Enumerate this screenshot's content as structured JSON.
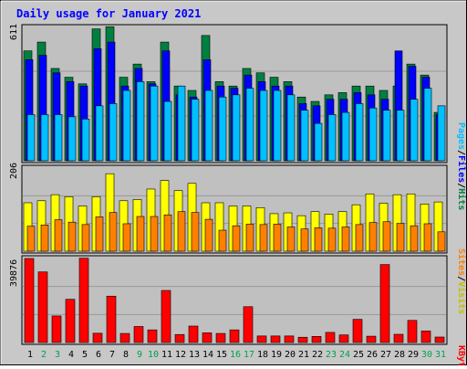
{
  "chart_data": [
    {
      "type": "bar",
      "panel": "pages-files-hits",
      "title": "Daily usage for January 2021",
      "scale_max_label": "611",
      "ylim": [
        0,
        611
      ],
      "categories": [
        "1",
        "2",
        "3",
        "4",
        "5",
        "6",
        "7",
        "8",
        "9",
        "10",
        "11",
        "12",
        "13",
        "14",
        "15",
        "16",
        "17",
        "18",
        "19",
        "20",
        "21",
        "22",
        "23",
        "24",
        "25",
        "26",
        "27",
        "28",
        "29",
        "30",
        "31"
      ],
      "weekend_days": [
        "2",
        "3",
        "9",
        "10",
        "16",
        "17",
        "23",
        "24",
        "30",
        "31"
      ],
      "series": [
        {
          "name": "Hits",
          "color": "#008040",
          "values": [
            500,
            540,
            420,
            380,
            350,
            600,
            610,
            380,
            440,
            360,
            540,
            340,
            320,
            570,
            360,
            340,
            420,
            400,
            380,
            360,
            290,
            270,
            300,
            310,
            340,
            340,
            320,
            340,
            440,
            390,
            220
          ]
        },
        {
          "name": "Files",
          "color": "#0000ff",
          "values": [
            460,
            480,
            400,
            360,
            340,
            510,
            540,
            340,
            420,
            350,
            500,
            300,
            290,
            460,
            340,
            330,
            390,
            360,
            340,
            340,
            260,
            250,
            280,
            280,
            310,
            300,
            280,
            500,
            430,
            380,
            210
          ]
        },
        {
          "name": "Pages",
          "color": "#00c0ff",
          "values": [
            210,
            210,
            210,
            200,
            190,
            250,
            260,
            320,
            360,
            340,
            270,
            340,
            280,
            320,
            290,
            300,
            330,
            320,
            320,
            300,
            230,
            170,
            210,
            220,
            260,
            240,
            230,
            230,
            280,
            330,
            250
          ]
        }
      ]
    },
    {
      "type": "bar",
      "panel": "visits-sites",
      "scale_max_label": "206",
      "ylim": [
        0,
        206
      ],
      "series": [
        {
          "name": "Visits",
          "color": "#ffff00",
          "values": [
            120,
            125,
            140,
            135,
            112,
            135,
            192,
            125,
            128,
            154,
            175,
            150,
            168,
            120,
            120,
            112,
            112,
            108,
            93,
            95,
            88,
            98,
            92,
            98,
            115,
            142,
            119,
            140,
            142,
            117,
            122
          ]
        },
        {
          "name": "Sites",
          "color": "#ff8000",
          "values": [
            62,
            65,
            78,
            72,
            66,
            85,
            96,
            68,
            86,
            86,
            90,
            98,
            96,
            79,
            52,
            63,
            67,
            66,
            67,
            60,
            55,
            58,
            57,
            60,
            66,
            71,
            73,
            69,
            63,
            68,
            48
          ]
        }
      ]
    },
    {
      "type": "bar",
      "panel": "kbytes",
      "scale_max_label": "39876",
      "ylim": [
        0,
        39876
      ],
      "series": [
        {
          "name": "KBytes",
          "color": "#ff0000",
          "values": [
            39876,
            33500,
            12600,
            20500,
            40000,
            4400,
            22000,
            4300,
            7600,
            6000,
            24700,
            3800,
            7800,
            4600,
            4300,
            6000,
            17000,
            3100,
            3100,
            3100,
            2500,
            2900,
            4800,
            3600,
            11000,
            3000,
            37000,
            3900,
            10500,
            5500,
            2600
          ]
        }
      ]
    }
  ],
  "legend": {
    "pages": "Pages",
    "files": "Files",
    "hits": "Hits",
    "sites": "Sites",
    "visits": "Visits",
    "kbytes": "KBytes"
  },
  "colors": {
    "background": "#c8c8c8",
    "plot_bg": "#c0c0c0",
    "weekday_label": "#000000",
    "weekend_label": "#00a050"
  }
}
